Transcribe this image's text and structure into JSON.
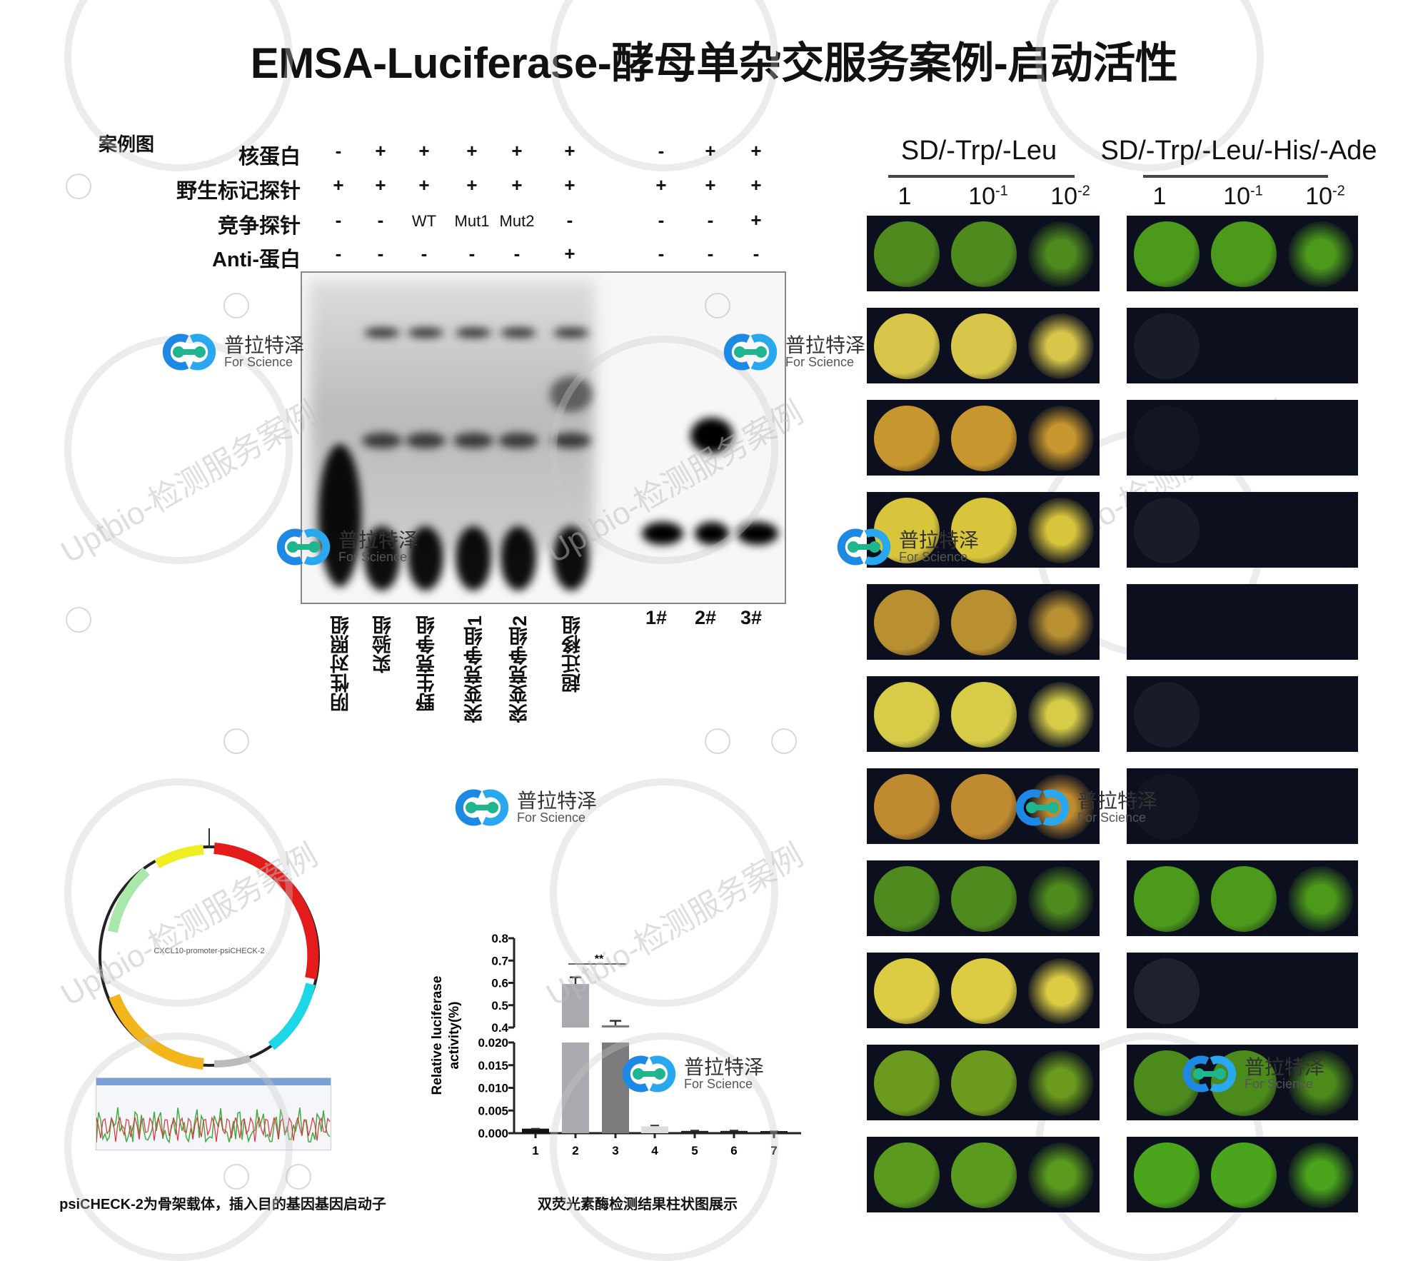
{
  "title": "EMSA-Luciferase-酵母单杂交服务案例-启动活性",
  "case_label": "案例图",
  "watermark": "Uptbio-检测服务案例",
  "logo": {
    "cn": "普拉特泽",
    "en": "For Science",
    "colors": {
      "blue": "#1e88e5",
      "green": "#1fb58f"
    }
  },
  "emsa": {
    "rows": [
      {
        "label": "核蛋白",
        "values": [
          "-",
          "+",
          "+",
          "+",
          "+",
          "+",
          "-",
          "+",
          "+"
        ]
      },
      {
        "label": "野生标记探针",
        "values": [
          "+",
          "+",
          "+",
          "+",
          "+",
          "+",
          "+",
          "+",
          "+"
        ]
      },
      {
        "label": "竞争探针",
        "values": [
          "-",
          "-",
          "WT",
          "Mut1",
          "Mut2",
          "-",
          "-",
          "-",
          "+"
        ]
      },
      {
        "label": "Anti-蛋白",
        "values": [
          "-",
          "-",
          "-",
          "-",
          "-",
          "+",
          "-",
          "-",
          "-"
        ]
      }
    ],
    "lane_names": [
      "阴性对照组",
      "实验组",
      "野生竞争组",
      "突变竞争组1",
      "突变竞争组2",
      "超迁移组"
    ],
    "sample_names": [
      "1#",
      "2#",
      "3#"
    ]
  },
  "yeast": {
    "media": [
      "SD/-Trp/-Leu",
      "SD/-Trp/-Leu/-His/-Ade"
    ],
    "dilutions": [
      {
        "base": "1",
        "exp": ""
      },
      {
        "base": "10",
        "exp": "-1"
      },
      {
        "base": "10",
        "exp": "-2"
      }
    ],
    "rows": [
      {
        "color": "#4f8a1e",
        "right_growth": [
          1,
          1,
          1
        ],
        "right_color": "#4c9a1c"
      },
      {
        "color": "#d8c64a",
        "right_growth": [
          0.1,
          0,
          0
        ],
        "right_color": "#333"
      },
      {
        "color": "#c8962e",
        "right_growth": [
          0.05,
          0,
          0
        ],
        "right_color": "#333"
      },
      {
        "color": "#d9c53c",
        "right_growth": [
          0.1,
          0,
          0
        ],
        "right_color": "#333"
      },
      {
        "color": "#b89032",
        "right_growth": [
          0,
          0,
          0
        ],
        "right_color": "#333"
      },
      {
        "color": "#d6cc48",
        "right_growth": [
          0.1,
          0,
          0
        ],
        "right_color": "#333"
      },
      {
        "color": "#c08a30",
        "right_growth": [
          0.05,
          0,
          0
        ],
        "right_color": "#333"
      },
      {
        "color": "#4f8a1e",
        "right_growth": [
          1,
          1,
          1
        ],
        "right_color": "#4c9a1c"
      },
      {
        "color": "#dccc44",
        "right_growth": [
          0.15,
          0,
          0
        ],
        "right_color": "#333"
      },
      {
        "color": "#6c9a1e",
        "right_growth": [
          1,
          1,
          1
        ],
        "right_color": "#4c8a1c"
      },
      {
        "color": "#5a9a1e",
        "right_growth": [
          1,
          1,
          1
        ],
        "right_color": "#4aa41c"
      }
    ]
  },
  "plasmid": {
    "name": "CXCL10-promoter-psiCHECK-2",
    "caption": "psiCHECK-2为骨架载体，插入目的基因基因启动子"
  },
  "chart_data": {
    "type": "bar",
    "categories": [
      "1",
      "2",
      "3",
      "4",
      "5",
      "6",
      "7"
    ],
    "values": [
      0.001,
      0.595,
      0.41,
      0.0015,
      0.0005,
      0.0005,
      0.0003
    ],
    "errors": [
      0,
      0.03,
      0.02,
      0.0002,
      0.0001,
      0.0001,
      0.0001
    ],
    "colors": [
      "#111111",
      "#a9a9b0",
      "#7b7b7b",
      "#dddddd",
      "#222222",
      "#222222",
      "#222222"
    ],
    "xlabel": "",
    "ylabel": "Relative luciferase activity(%)",
    "ylim": [
      0,
      0.8
    ],
    "axis_break": {
      "lower": [
        0,
        0.02
      ],
      "upper": [
        0.4,
        0.8
      ]
    },
    "yticks_lower": [
      "0.000",
      "0.005",
      "0.010",
      "0.015",
      "0.020"
    ],
    "yticks_upper": [
      "0.4",
      "0.5",
      "0.6",
      "0.7",
      "0.8"
    ],
    "annotation": "**",
    "annotation_between": [
      "2",
      "3"
    ],
    "caption": "双荧光素酶检测结果柱状图展示"
  }
}
